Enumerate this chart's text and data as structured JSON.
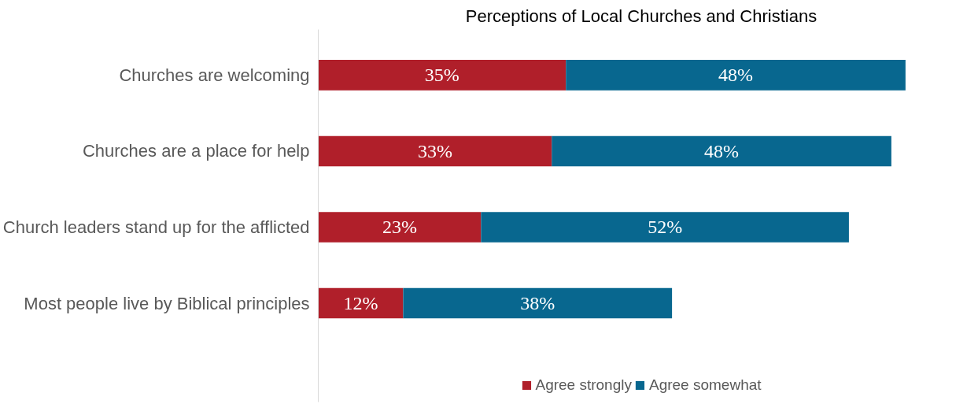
{
  "chart_data": {
    "type": "bar",
    "orientation": "horizontal",
    "stacked": true,
    "title": "Perceptions of Local Churches and Christians",
    "categories": [
      "Churches are welcoming",
      "Churches are a place for help",
      "Church leaders stand up for the afflicted",
      "Most people live by Biblical principles"
    ],
    "series": [
      {
        "name": "Agree strongly",
        "color": "#b01f2a",
        "values": [
          35,
          33,
          23,
          12
        ],
        "value_labels": [
          "35%",
          "33%",
          "23%",
          "12%"
        ]
      },
      {
        "name": "Agree somewhat",
        "color": "#08678f",
        "values": [
          48,
          48,
          52,
          38
        ],
        "value_labels": [
          "48%",
          "48%",
          "52%",
          "38%"
        ]
      }
    ],
    "legend": "bottom",
    "grid": false
  }
}
